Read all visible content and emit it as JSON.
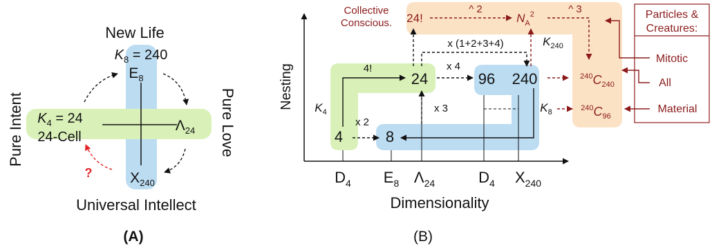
{
  "panel_a": {
    "caption": "(A)",
    "top_label": "New Life",
    "k8_sym": "K",
    "k8_sub": "8",
    "k8_val": " = 240",
    "e8_main": "E",
    "e8_sub": "8",
    "k4_sym": "K",
    "k4_sub": "4",
    "k4_val": " = 24",
    "cell_label": "24-Cell",
    "lambda_main": "Λ",
    "lambda_sub": "24",
    "x_main": "X",
    "x_sub": "240",
    "left_label": "Pure Intent",
    "right_label": "Pure Love",
    "bottom_label": "Universal Intellect",
    "question": "?"
  },
  "panel_b": {
    "caption": "(B)",
    "y_axis": "Nesting",
    "x_axis": "Dimensionality",
    "x_ticks": [
      {
        "main": "D",
        "sub": "4"
      },
      {
        "main": "E",
        "sub": "8"
      },
      {
        "main": "Λ",
        "sub": "24"
      },
      {
        "main": "D",
        "sub": "4"
      },
      {
        "main": "X",
        "sub": "240"
      }
    ],
    "nodes": {
      "n4": "4",
      "n8": "8",
      "n24": "24",
      "n96": "96",
      "n240": "240"
    },
    "edges": {
      "four_fact": "4!",
      "x2": "x 2",
      "x3": "x 3",
      "x4": "x 4",
      "x_sum": "x (1+2+3+4)",
      "k4_main": "K",
      "k4_sub": "4",
      "k240_main": "K",
      "k240_sub": "240",
      "k8_main": "K",
      "k8_sub": "8"
    },
    "top": {
      "collective_1": "Collective",
      "collective_2": "Conscious.",
      "fact24": "24!",
      "pow2": "^ 2",
      "na_main": "N",
      "na_sub": "A",
      "na_sup": "2",
      "pow3": "^ 3"
    },
    "combos": {
      "c240_sup": "240",
      "c240_main": "C",
      "c240_sub": "240",
      "c96_sup": "240",
      "c96_main": "C",
      "c96_sub": "96"
    },
    "legend": {
      "title_1": "Particles &",
      "title_2": "Creatures:",
      "items": [
        "Mitotic",
        "All",
        "Material"
      ]
    }
  },
  "colors": {
    "blue": "#bcdcf2",
    "green": "#d9f1b8",
    "orange": "#fbe2c5",
    "red": "#8b1a1a",
    "question_red": "#e3262a",
    "ink": "#111111"
  }
}
